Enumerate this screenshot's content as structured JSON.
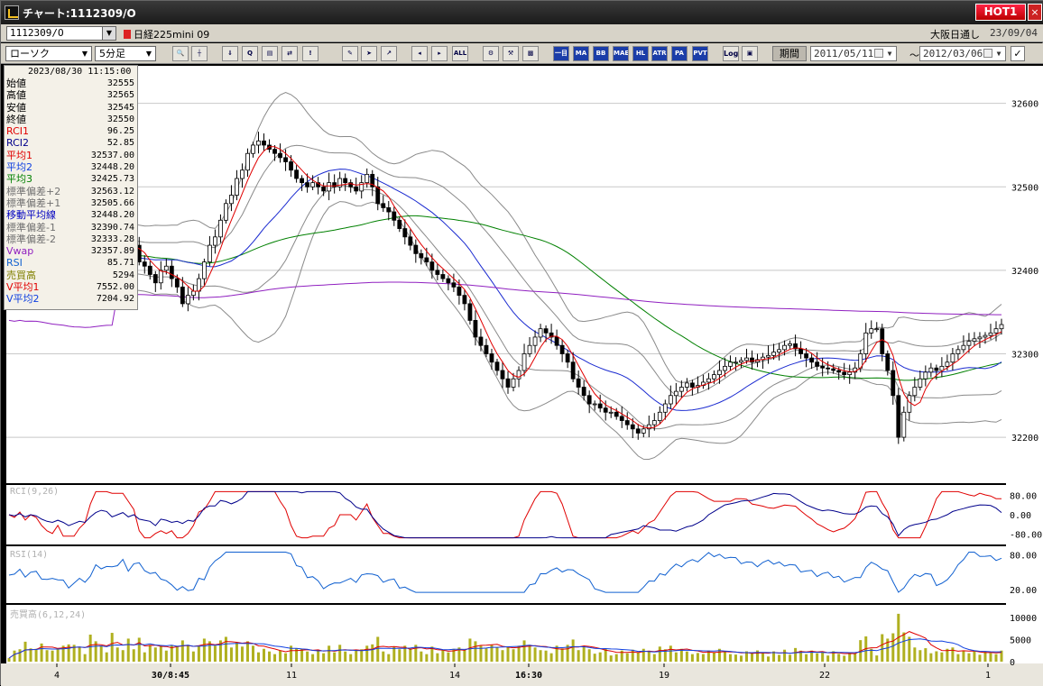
{
  "window": {
    "title": "チャート:1112309/O",
    "hot_label": "HOT1",
    "close_label": "×"
  },
  "symbol_bar": {
    "symbol": "1112309/O",
    "instrument": "日経225mini 09",
    "session": "大阪日通し",
    "date": "23/09/04"
  },
  "toolbar": {
    "chart_type": "ローソク",
    "interval": "5分足",
    "icons": [
      "zoom-icon",
      "cursor-split-icon",
      "download-icon",
      "search-icon",
      "chart-icon",
      "compare-icon",
      "info-icon",
      "pen-icon",
      "pointer-icon",
      "arrow-icon",
      "scroll-left-icon",
      "scroll-right-icon",
      "all-icon",
      "settings-icon",
      "tools-icon",
      "color-icon"
    ],
    "indicator_buttons": [
      "一目",
      "MA",
      "BB",
      "MAE",
      "HL",
      "ATR",
      "PA",
      "PVT"
    ],
    "log_label": "Log",
    "period_label": "期間",
    "start_date": "2011/05/11",
    "end_date": "2012/03/06",
    "date_sep": "～"
  },
  "info_panel": {
    "datetime": "2023/08/30  11:15:00",
    "rows": [
      {
        "label": "始値",
        "value": "32555",
        "color": "#000000"
      },
      {
        "label": "高値",
        "value": "32565",
        "color": "#000000"
      },
      {
        "label": "安値",
        "value": "32545",
        "color": "#000000"
      },
      {
        "label": "終値",
        "value": "32550",
        "color": "#000000"
      },
      {
        "label": "RCI1",
        "value": "96.25",
        "color": "#e00000"
      },
      {
        "label": "RCI2",
        "value": "52.85",
        "color": "#00008b"
      },
      {
        "label": "平均1",
        "value": "32537.00",
        "color": "#e00000"
      },
      {
        "label": "平均2",
        "value": "32448.20",
        "color": "#1040e0"
      },
      {
        "label": "平均3",
        "value": "32425.73",
        "color": "#008000"
      },
      {
        "label": "標準偏差+2",
        "value": "32563.12",
        "color": "#707070"
      },
      {
        "label": "標準偏差+1",
        "value": "32505.66",
        "color": "#707070"
      },
      {
        "label": "移動平均線",
        "value": "32448.20",
        "color": "#0000c0"
      },
      {
        "label": "標準偏差-1",
        "value": "32390.74",
        "color": "#707070"
      },
      {
        "label": "標準偏差-2",
        "value": "32333.28",
        "color": "#707070"
      },
      {
        "label": "Vwap",
        "value": "32357.89",
        "color": "#9020c0"
      },
      {
        "label": "RSI",
        "value": "85.71",
        "color": "#1060d0"
      },
      {
        "label": "売買高",
        "value": "5294",
        "color": "#808000"
      },
      {
        "label": "V平均1",
        "value": "7552.00",
        "color": "#e00000"
      },
      {
        "label": "V平均2",
        "value": "7204.92",
        "color": "#1040e0"
      }
    ]
  },
  "chart_data": {
    "type": "candlestick",
    "price_axis": {
      "ticks": [
        32200,
        32300,
        32400,
        32500,
        32600
      ],
      "ylim": [
        32145,
        32645
      ]
    },
    "x_ticks": [
      "4",
      "30/8:45",
      "11",
      "14",
      "16:30",
      "19",
      "22",
      "1"
    ],
    "closes": [
      32430,
      32425,
      32435,
      32420,
      32430,
      32425,
      32410,
      32400,
      32395,
      32405,
      32395,
      32380,
      32390,
      32400,
      32395,
      32420,
      32440,
      32450,
      32445,
      32420,
      32430,
      32440,
      32420,
      32430,
      32410,
      32405,
      32395,
      32385,
      32400,
      32405,
      32390,
      32380,
      32360,
      32370,
      32375,
      32390,
      32410,
      32430,
      32440,
      32460,
      32480,
      32490,
      32510,
      32520,
      32540,
      32550,
      32555,
      32550,
      32545,
      32540,
      32535,
      32530,
      32520,
      32510,
      32505,
      32500,
      32505,
      32500,
      32495,
      32505,
      32500,
      32510,
      32505,
      32500,
      32495,
      32505,
      32515,
      32500,
      32480,
      32475,
      32470,
      32460,
      32450,
      32440,
      32430,
      32420,
      32415,
      32410,
      32400,
      32395,
      32390,
      32385,
      32380,
      32370,
      32360,
      32340,
      32320,
      32310,
      32300,
      32290,
      32280,
      32270,
      32260,
      32270,
      32280,
      32300,
      32310,
      32320,
      32330,
      32325,
      32320,
      32310,
      32300,
      32290,
      32270,
      32260,
      32250,
      32240,
      32240,
      32235,
      32230,
      32230,
      32225,
      32220,
      32215,
      32210,
      32205,
      32210,
      32215,
      32220,
      32230,
      32240,
      32250,
      32255,
      32260,
      32265,
      32260,
      32262,
      32266,
      32270,
      32275,
      32280,
      32285,
      32290,
      32290,
      32292,
      32295,
      32290,
      32293,
      32296,
      32298,
      32302,
      32305,
      32310,
      32312,
      32306,
      32300,
      32295,
      32290,
      32285,
      32283,
      32282,
      32280,
      32278,
      32275,
      32278,
      32283,
      32300,
      32325,
      32330,
      32330,
      32300,
      32280,
      32250,
      32200,
      32230,
      32250,
      32260,
      32270,
      32278,
      32283,
      32280,
      32285,
      32290,
      32300,
      32305,
      32310,
      32315,
      32318,
      32320,
      32322,
      32325,
      32330,
      32335
    ],
    "volume_axis": {
      "ticks": [
        10000,
        5000,
        0
      ]
    },
    "rci_axis": {
      "ticks": [
        "80.00",
        "0.00",
        "-80.00"
      ]
    },
    "rsi_axis": {
      "ticks": [
        "80.00",
        "20.00"
      ]
    },
    "rci_title": "RCI(9,26)",
    "rsi_title": "RSI(14)",
    "volume_title": "売買高(6,12,24)"
  }
}
